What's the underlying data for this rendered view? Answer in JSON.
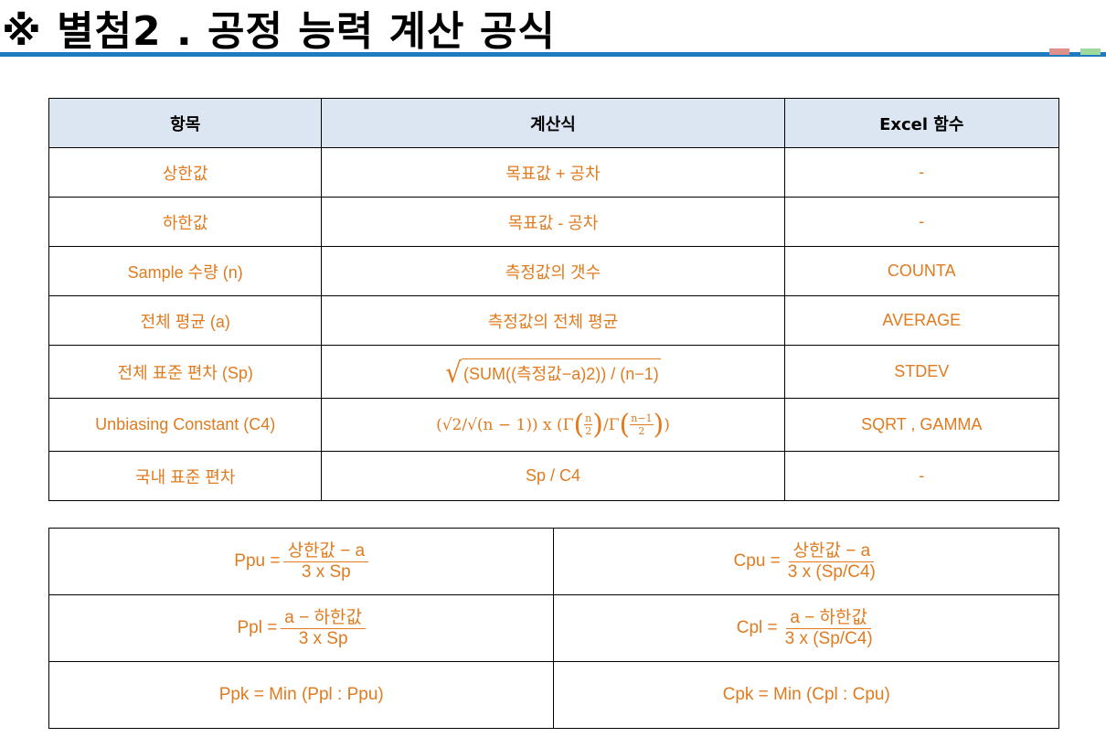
{
  "title": "※ 별첨2 . 공정 능력 계산 공식",
  "colors": {
    "rule": "#1f7bbf",
    "accent_red": "#e0908c",
    "accent_green": "#9ed99e",
    "header_bg": "#dce6f2",
    "text": "#e07b1f"
  },
  "table": {
    "headers": [
      "항목",
      "계산식",
      "Excel 함수"
    ],
    "rows": [
      {
        "item": "상한값",
        "formula": "목표값 + 공차",
        "excel": "-"
      },
      {
        "item": "하한값",
        "formula": "목표값 - 공차",
        "excel": "-"
      },
      {
        "item": "Sample 수량 (n)",
        "formula": "측정값의 갯수",
        "excel": "COUNTA"
      },
      {
        "item": "전체 평균 (a)",
        "formula": "측정값의 전체 평균",
        "excel": "AVERAGE"
      },
      {
        "item": "전체 표준 편차 (Sp)",
        "formula": "(SUM((측정값−a)2)) / (n−1)",
        "excel": "STDEV"
      },
      {
        "item": "Unbiasing Constant (C4)",
        "formula_parts": {
          "lead": "(√2/√(n − 1)) x (Γ",
          "frac1_num": "n",
          "frac1_den": "2",
          "mid": "/Γ",
          "frac2_num": "n−1",
          "frac2_den": "2",
          "tail": ")"
        },
        "excel": "SQRT , GAMMA"
      },
      {
        "item": "국내 표준 편차",
        "formula": "Sp / C4",
        "excel": "-"
      }
    ]
  },
  "indices": {
    "ppu": {
      "lhs": "Ppu =",
      "num": "상한값 − a",
      "den": "3 x Sp"
    },
    "cpu": {
      "lhs": "Cpu =",
      "num": "상한값 − a",
      "den": "3 x (Sp/C4)"
    },
    "ppl": {
      "lhs": "Ppl =",
      "num": "a − 하한값",
      "den": "3 x Sp"
    },
    "cpl": {
      "lhs": "Cpl =",
      "num": "a − 하한값",
      "den": "3 x (Sp/C4)"
    },
    "ppk": "Ppk = Min (Ppl : Ppu)",
    "cpk": "Cpk = Min (Cpl : Cpu)"
  }
}
